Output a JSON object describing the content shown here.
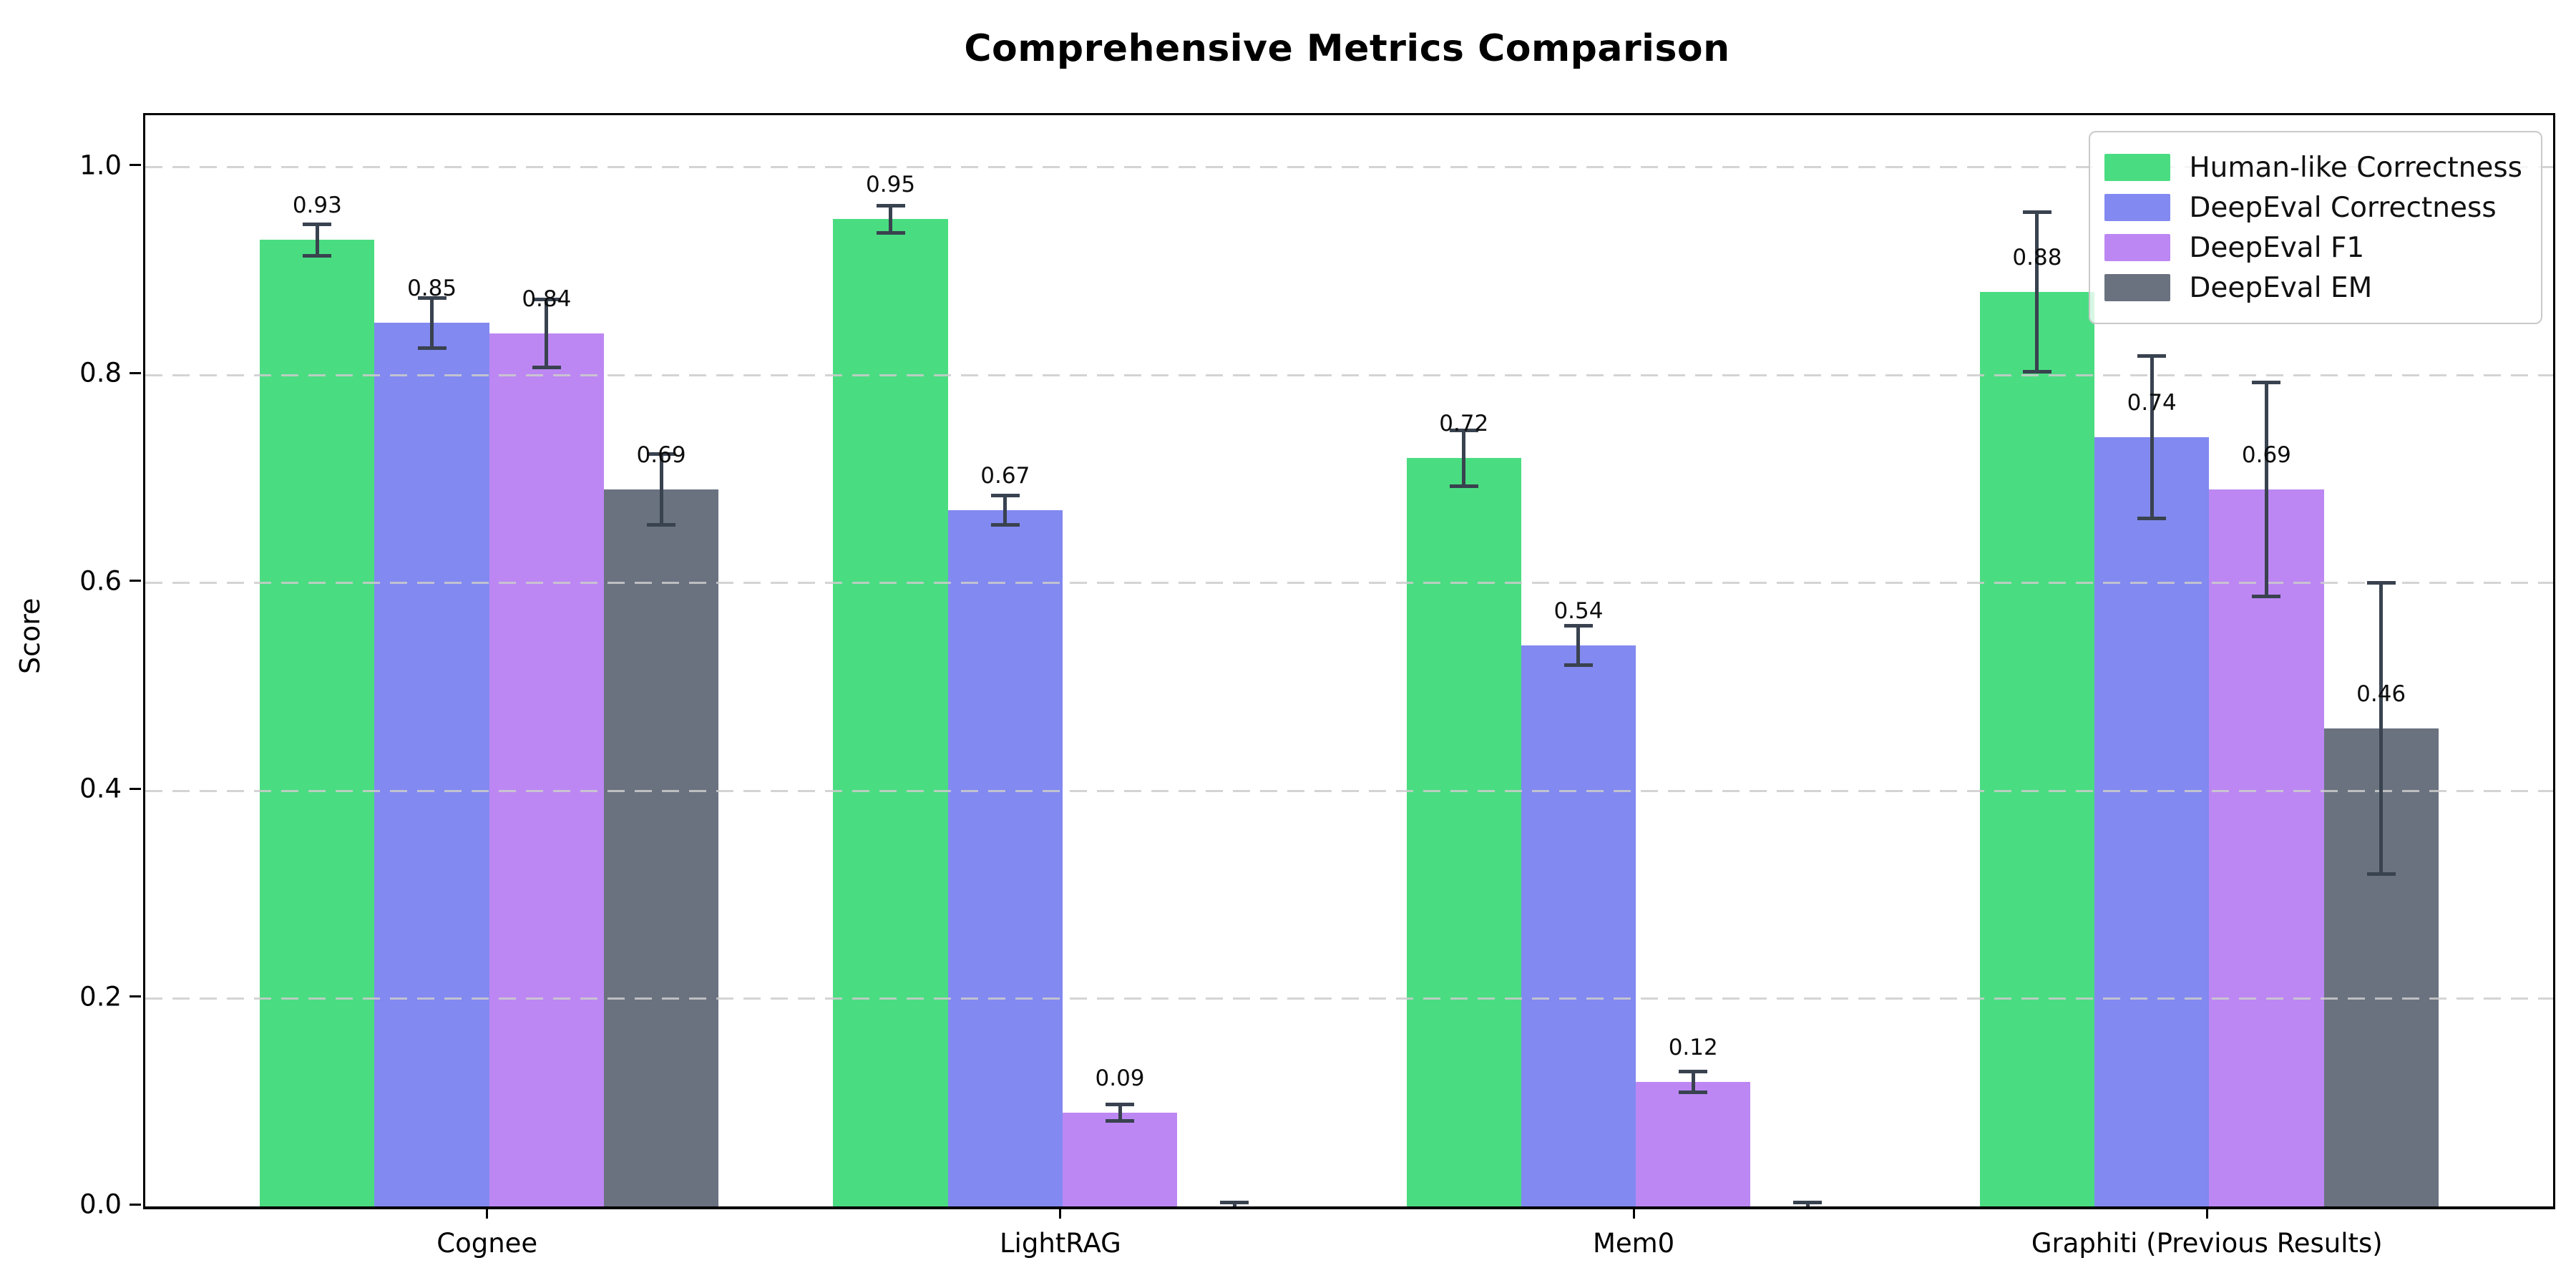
{
  "title": "Comprehensive Metrics Comparison",
  "chart_data": {
    "type": "bar",
    "title": "Comprehensive Metrics Comparison",
    "xlabel": "",
    "ylabel": "Score",
    "ylim": [
      0,
      1.05
    ],
    "yticks": [
      "0.0",
      "0.2",
      "0.4",
      "0.6",
      "0.8",
      "1.0"
    ],
    "ytick_values": [
      0.0,
      0.2,
      0.4,
      0.6,
      0.8,
      1.0
    ],
    "grid": "horizontal-dashed-over-bars",
    "legend_position": "upper right",
    "categories": [
      "Cognee",
      "LightRAG",
      "Mem0",
      "Graphiti (Previous Results)"
    ],
    "series": [
      {
        "name": "Human-like Correctness",
        "color": "#4adc81",
        "values": [
          0.93,
          0.95,
          0.72,
          0.88
        ],
        "errors": [
          0.015,
          0.013,
          0.027,
          0.077
        ],
        "labels": [
          "0.93",
          "0.95",
          "0.72",
          "0.88"
        ]
      },
      {
        "name": "DeepEval Correctness",
        "color": "#8289f0",
        "values": [
          0.85,
          0.67,
          0.54,
          0.74
        ],
        "errors": [
          0.024,
          0.014,
          0.019,
          0.078
        ],
        "labels": [
          "0.85",
          "0.67",
          "0.54",
          "0.74"
        ]
      },
      {
        "name": "DeepEval F1",
        "color": "#bc87f3",
        "values": [
          0.84,
          0.09,
          0.12,
          0.69
        ],
        "errors": [
          0.033,
          0.008,
          0.01,
          0.103
        ],
        "labels": [
          "0.84",
          "0.09",
          "0.12",
          "0.69"
        ]
      },
      {
        "name": "DeepEval EM",
        "color": "#6a7280",
        "values": [
          0.69,
          0.0,
          0.0,
          0.46
        ],
        "errors": [
          0.034,
          0.004,
          0.004,
          0.14
        ],
        "labels": [
          "0.69",
          "",
          "",
          "0.46"
        ]
      }
    ],
    "error_bar_color": "#39424f",
    "gridline_color": "#cccccc"
  }
}
